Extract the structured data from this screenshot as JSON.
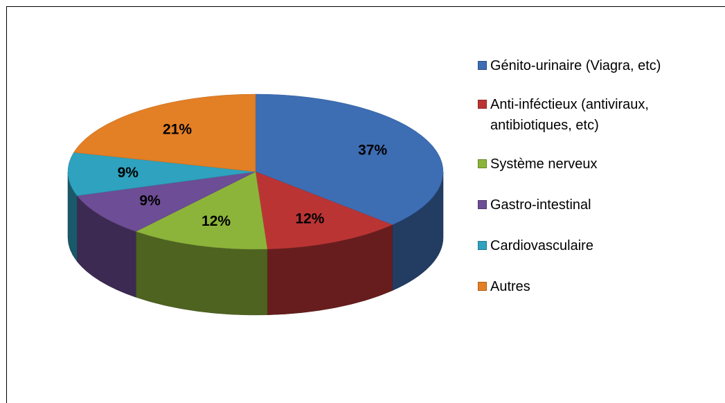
{
  "chart_data": {
    "type": "pie",
    "categories": [
      "Génito-urinaire (Viagra, etc)",
      "Anti-inféctieux (antiviraux, antibiotiques, etc)",
      "Système nerveux",
      "Gastro-intestinal",
      "Cardiovasculaire",
      "Autres"
    ],
    "values": [
      37,
      12,
      12,
      9,
      9,
      21
    ],
    "value_labels": [
      "37%",
      "12%",
      "12%",
      "9%",
      "9%",
      "21%"
    ],
    "colors": [
      "#3d6db3",
      "#bb3434",
      "#8db43a",
      "#6d4d95",
      "#2ea2bf",
      "#e37f25"
    ],
    "legend": "right"
  }
}
